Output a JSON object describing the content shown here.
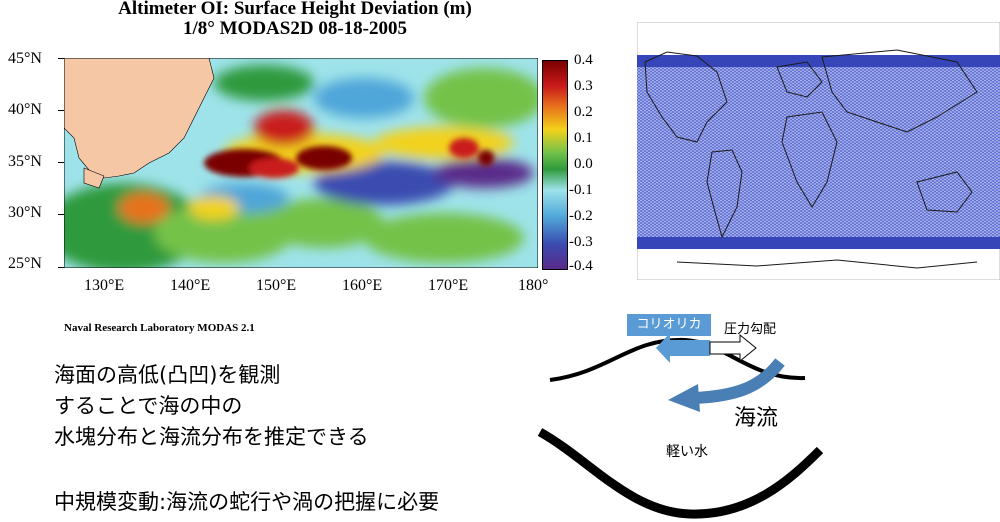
{
  "map": {
    "title_line1": "Altimeter OI: Surface Height Deviation (m)",
    "title_line2": "1/8° MODAS2D 08-18-2005",
    "lat_labels": [
      "45°N",
      "40°N",
      "35°N",
      "30°N",
      "25°N"
    ],
    "lon_labels": [
      "130°E",
      "140°E",
      "150°E",
      "160°E",
      "170°E",
      "180°"
    ],
    "colorbar_labels": [
      "0.4",
      "0.3",
      "0.2",
      "0.1",
      "0.0",
      "-0.1",
      "-0.2",
      "-0.3",
      "-0.4"
    ],
    "colorbar_colors": [
      "#7a0000",
      "#c91a1a",
      "#e8721c",
      "#f3d21b",
      "#74c24a",
      "#2e9a3c",
      "#9ee3ea",
      "#4fa6d9",
      "#3a4bb0",
      "#5a2a8a"
    ],
    "credit": "Naval Research Laboratory  MODAS 2.1"
  },
  "text_block": {
    "line1": "海面の高低(凸凹)を観測",
    "line2": "することで海の中の",
    "line3": "水塊分布と海流分布を推定できる",
    "line4": "中規模変動:海流の蛇行や渦の把握に必要"
  },
  "diagram": {
    "coriolis_label": "コリオリカ",
    "pressure_label": "圧力勾配",
    "current_label": "海流",
    "light_water_label": "軽い水",
    "colors": {
      "coriolis": "#5b9bd5",
      "current_arrow": "#4a7fb5"
    }
  }
}
